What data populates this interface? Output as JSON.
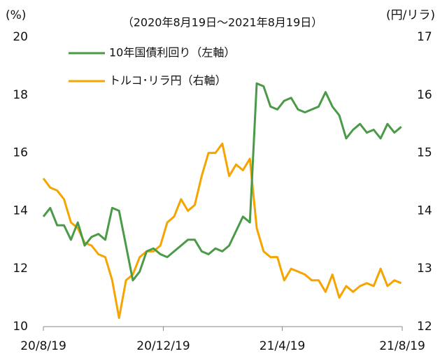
{
  "chart_data": {
    "type": "line",
    "title": "（2020年8月19日～2021年8月19日）",
    "y_label": "(%)",
    "y2_label": "(円/リラ)",
    "x": [
      "2020-08-19",
      "2020-08-26",
      "2020-09-02",
      "2020-09-09",
      "2020-09-16",
      "2020-09-23",
      "2020-09-30",
      "2020-10-07",
      "2020-10-14",
      "2020-10-21",
      "2020-10-28",
      "2020-11-04",
      "2020-11-11",
      "2020-11-18",
      "2020-11-25",
      "2020-12-02",
      "2020-12-09",
      "2020-12-16",
      "2020-12-23",
      "2020-12-30",
      "2021-01-06",
      "2021-01-13",
      "2021-01-20",
      "2021-01-27",
      "2021-02-03",
      "2021-02-10",
      "2021-02-17",
      "2021-02-24",
      "2021-03-03",
      "2021-03-10",
      "2021-03-17",
      "2021-03-24",
      "2021-03-31",
      "2021-04-07",
      "2021-04-14",
      "2021-04-21",
      "2021-04-28",
      "2021-05-05",
      "2021-05-12",
      "2021-05-19",
      "2021-05-26",
      "2021-06-02",
      "2021-06-09",
      "2021-06-16",
      "2021-06-23",
      "2021-06-30",
      "2021-07-07",
      "2021-07-14",
      "2021-07-21",
      "2021-07-28",
      "2021-08-04",
      "2021-08-11",
      "2021-08-18"
    ],
    "series": [
      {
        "name": "10年国債利回り（左軸）",
        "color": "#4a9a48",
        "axis": "y",
        "values": [
          13.8,
          14.1,
          13.5,
          13.5,
          13.0,
          13.6,
          12.8,
          13.1,
          13.2,
          13.0,
          14.1,
          14.0,
          12.8,
          11.6,
          11.9,
          12.6,
          12.7,
          12.5,
          12.4,
          12.6,
          12.8,
          13.0,
          13.0,
          12.6,
          12.5,
          12.7,
          12.6,
          12.8,
          13.3,
          13.8,
          13.6,
          18.4,
          18.3,
          17.6,
          17.5,
          17.8,
          17.9,
          17.5,
          17.4,
          17.5,
          17.6,
          18.1,
          17.6,
          17.3,
          16.5,
          16.8,
          17.0,
          16.7,
          16.8,
          16.5,
          17.0,
          16.7,
          16.9
        ]
      },
      {
        "name": "トルコ･リラ円（右軸）",
        "color": "#f5a400",
        "axis": "y2",
        "values": [
          14.56,
          14.4,
          14.35,
          14.2,
          13.8,
          13.7,
          13.45,
          13.4,
          13.25,
          13.2,
          12.8,
          12.15,
          12.8,
          12.9,
          13.2,
          13.3,
          13.3,
          13.4,
          13.8,
          13.9,
          14.2,
          14.0,
          14.1,
          14.6,
          15.0,
          15.0,
          15.16,
          14.6,
          14.8,
          14.7,
          14.9,
          13.7,
          13.3,
          13.2,
          13.2,
          12.8,
          13.0,
          12.95,
          12.9,
          12.8,
          12.8,
          12.6,
          12.9,
          12.5,
          12.7,
          12.6,
          12.7,
          12.75,
          12.7,
          13.0,
          12.7,
          12.8,
          12.75
        ]
      }
    ],
    "xlim": [
      "2020-08-19",
      "2021-08-19"
    ],
    "xticks": [
      {
        "value": "2020-08-19",
        "label": "20/8/19"
      },
      {
        "value": "2020-12-19",
        "label": "20/12/19"
      },
      {
        "value": "2021-04-19",
        "label": "21/4/19"
      },
      {
        "value": "2021-08-19",
        "label": "21/8/19"
      }
    ],
    "ylim": [
      10,
      20
    ],
    "yticks": [
      10,
      12,
      14,
      16,
      18,
      20
    ],
    "y2lim": [
      12,
      17
    ],
    "y2ticks": [
      12,
      13,
      14,
      15,
      16,
      17
    ],
    "grid": false
  }
}
